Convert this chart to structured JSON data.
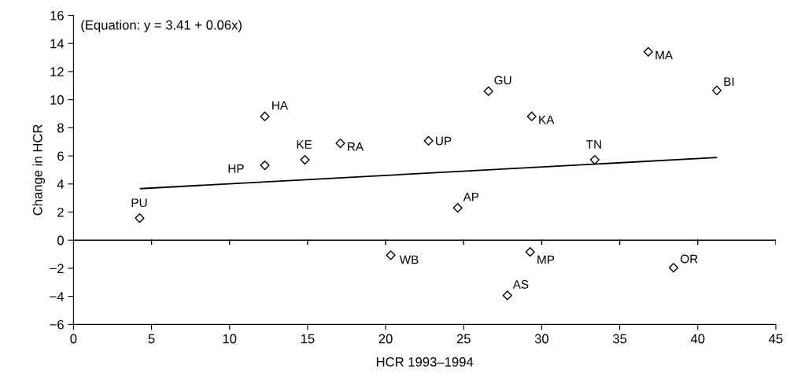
{
  "chart_data": {
    "type": "scatter",
    "xlabel": "HCR 1993–1994",
    "ylabel": "Change in HCR",
    "xlim": [
      0,
      45
    ],
    "xticks": [
      0,
      5,
      10,
      15,
      20,
      25,
      30,
      35,
      40,
      45
    ],
    "ylim": [
      -6,
      16
    ],
    "yticks": [
      -6,
      -4,
      -2,
      0,
      2,
      4,
      6,
      8,
      10,
      12,
      14,
      16
    ],
    "marker": "diamond",
    "grid": false,
    "legend": false,
    "series": [
      {
        "color": "#000000",
        "x": [
          4.24,
          12.26,
          12.26,
          14.83,
          17.1,
          20.33,
          22.75,
          24.62,
          26.59,
          27.8,
          29.36,
          29.26,
          33.4,
          36.83,
          38.45,
          41.22
        ],
        "values": [
          1.57,
          5.33,
          8.81,
          5.72,
          6.9,
          -1.07,
          7.07,
          2.3,
          10.6,
          -3.93,
          8.81,
          -0.84,
          5.72,
          13.41,
          -1.96,
          10.66
        ]
      },
      {
        "type": "line",
        "marker": "none",
        "color": "#000000",
        "x": [
          4.3,
          41.2
        ],
        "values": [
          3.67,
          5.88
        ]
      }
    ],
    "ref_lines": [
      {
        "axis": "y",
        "value": 0,
        "color": "#000000"
      }
    ],
    "annotations": [
      "(Equation: y = 3.41 + 0.06x)",
      {
        "text": "PU",
        "x": 4.24,
        "y": 1.57
      },
      {
        "text": "HP",
        "x": 12.26,
        "y": 5.33
      },
      {
        "text": "HA",
        "x": 12.26,
        "y": 8.81
      },
      {
        "text": "KE",
        "x": 14.83,
        "y": 5.72
      },
      {
        "text": "RA",
        "x": 17.1,
        "y": 6.9
      },
      {
        "text": "WB",
        "x": 20.33,
        "y": -1.07
      },
      {
        "text": "UP",
        "x": 22.75,
        "y": 7.07
      },
      {
        "text": "AP",
        "x": 24.62,
        "y": 2.3
      },
      {
        "text": "GU",
        "x": 26.59,
        "y": 10.6
      },
      {
        "text": "AS",
        "x": 27.8,
        "y": -3.93
      },
      {
        "text": "KA",
        "x": 29.36,
        "y": 8.81
      },
      {
        "text": "MP",
        "x": 29.26,
        "y": -0.84
      },
      {
        "text": "TN",
        "x": 33.4,
        "y": 5.72
      },
      {
        "text": "MA",
        "x": 36.83,
        "y": 13.41
      },
      {
        "text": "OR",
        "x": 38.45,
        "y": -1.96
      },
      {
        "text": "BI",
        "x": 41.22,
        "y": 10.66
      }
    ]
  }
}
